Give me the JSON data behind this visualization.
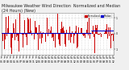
{
  "title": "Milwaukee Weather Wind Direction  Normalized and Median  (24 Hours) (New)",
  "background_color": "#f0f0f0",
  "plot_bg_color": "#ffffff",
  "ylim": [
    -1.35,
    1.35
  ],
  "xlim": [
    0,
    288
  ],
  "bar_color": "#cc0000",
  "median_color": "#0000cc",
  "median_value": 0.05,
  "median_recent_value": 0.22,
  "median_break": 230,
  "grid_color": "#bbbbbb",
  "title_fontsize": 3.5,
  "tick_fontsize": 2.2,
  "legend_labels": [
    "Normalized",
    "Median"
  ],
  "legend_colors": [
    "#cc0000",
    "#0000cc"
  ],
  "n_bars": 288,
  "yticks": [
    1.0,
    0.0,
    -1.0
  ],
  "ytick_labels": [
    "1",
    "0",
    "-1"
  ]
}
